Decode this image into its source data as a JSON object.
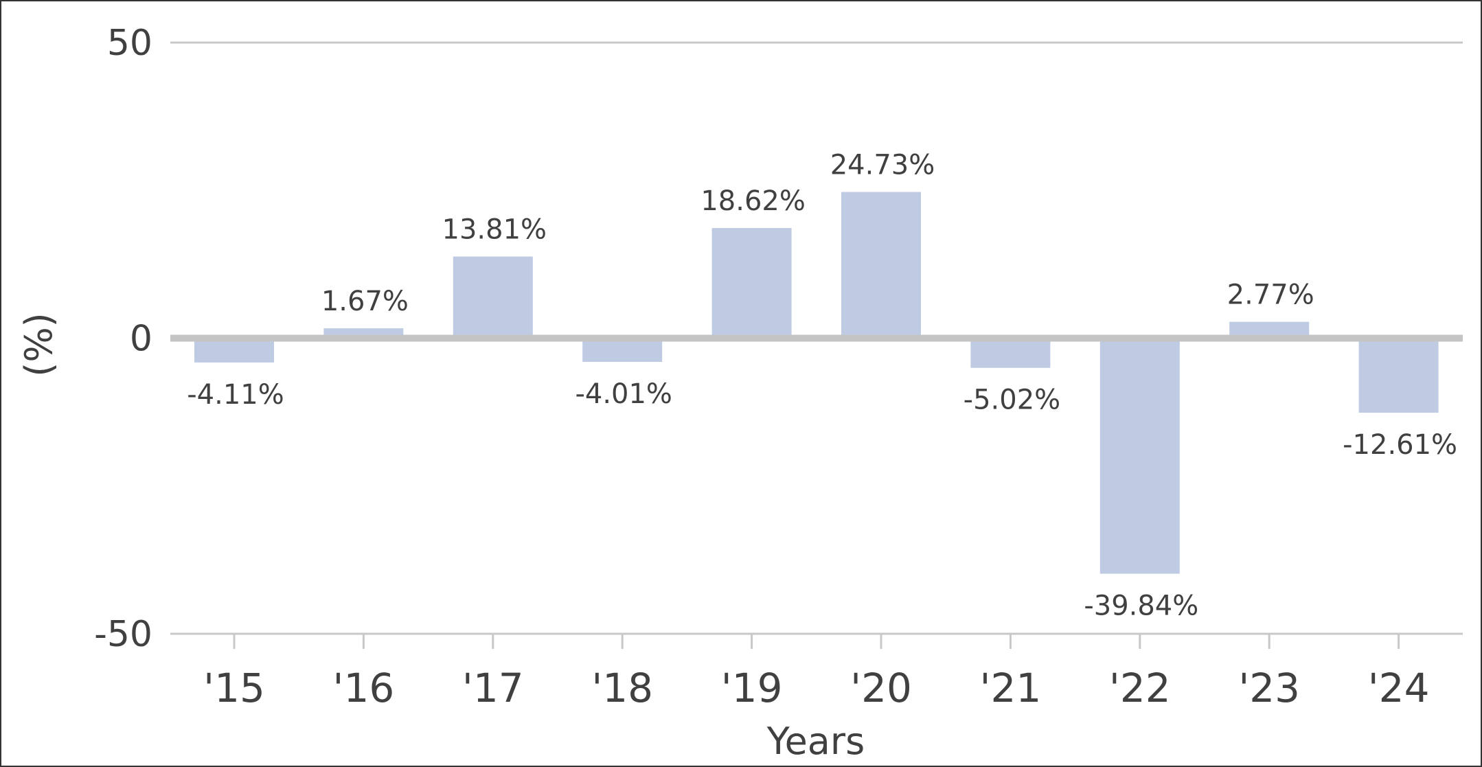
{
  "chart_data": {
    "type": "bar",
    "categories": [
      "'15",
      "'16",
      "'17",
      "'18",
      "'19",
      "'20",
      "'21",
      "'22",
      "'23",
      "'24"
    ],
    "values": [
      -4.11,
      1.67,
      13.81,
      -4.01,
      18.62,
      24.73,
      -5.02,
      -39.84,
      2.77,
      -12.61
    ],
    "data_labels": [
      "-4.11%",
      "1.67%",
      "13.81%",
      "-4.01%",
      "18.62%",
      "24.73%",
      "-5.02%",
      "-39.84%",
      "2.77%",
      "-12.61%"
    ],
    "yticks": [
      50,
      0,
      -50
    ],
    "ytick_labels": [
      "50",
      "0",
      "-50"
    ],
    "ylim": [
      -50,
      50
    ],
    "xlabel": "Years",
    "ylabel": "(%)",
    "title": "",
    "grid": true,
    "legend": "none",
    "colors": {
      "bar": "#bfcbe3",
      "grid": "#c8c8c8",
      "zero_line": "#c4c4c4",
      "text": "#404040",
      "frame": "#333333"
    }
  }
}
